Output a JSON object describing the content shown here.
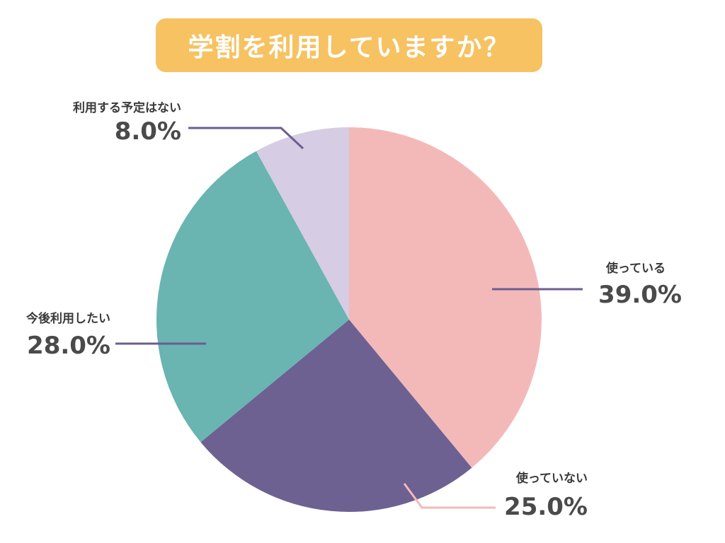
{
  "title": "学割を利用していますか？",
  "colors": {
    "title_bg": "#f6c262",
    "leader": "#6b5e91"
  },
  "chart_data": {
    "type": "pie",
    "title": "学割を利用していますか？",
    "start": "top",
    "direction": "clockwise",
    "slices": [
      {
        "label": "使っている",
        "value": 39.0,
        "value_label": "39.0%",
        "color": "#f3b9b9"
      },
      {
        "label": "使っていない",
        "value": 25.0,
        "value_label": "25.0%",
        "color": "#6d6192"
      },
      {
        "label": "今後利用したい",
        "value": 28.0,
        "value_label": "28.0%",
        "color": "#6ab4b1"
      },
      {
        "label": "利用する予定はない",
        "value": 8.0,
        "value_label": "8.0%",
        "color": "#d6cce3"
      }
    ]
  }
}
